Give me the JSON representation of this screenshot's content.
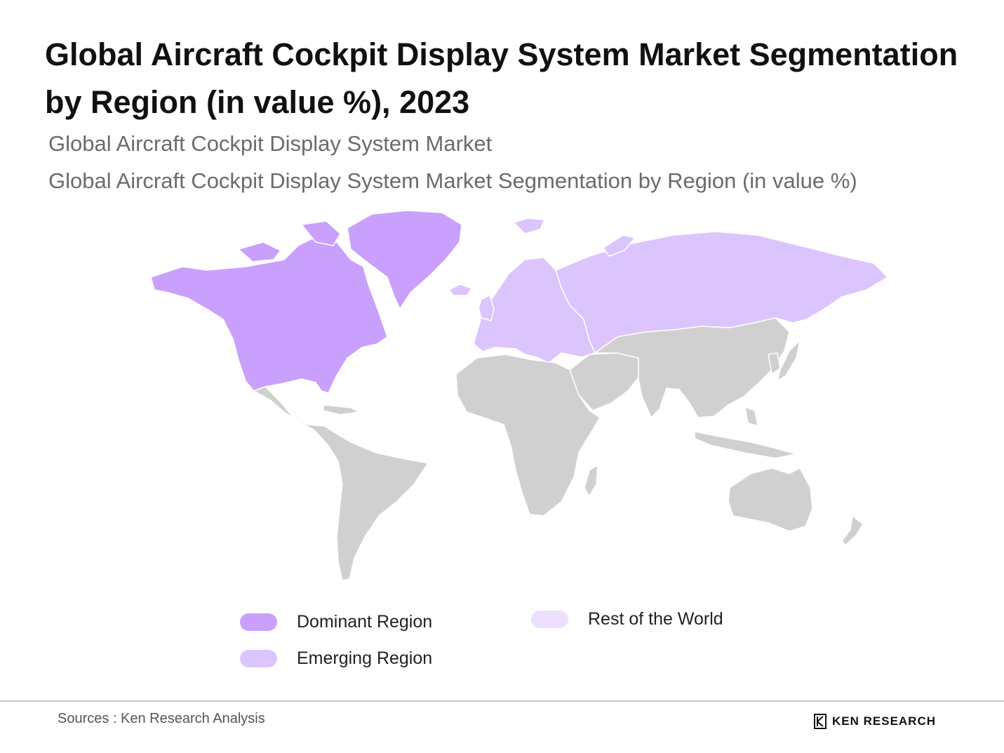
{
  "title": "Global Aircraft Cockpit Display System Market Segmentation by Region (in value %), 2023",
  "subtitle_1": "Global Aircraft Cockpit Display System Market",
  "subtitle_2": "Global Aircraft Cockpit Display System Market Segmentation by Region (in value %)",
  "colors": {
    "dominant": "#c9a0fc",
    "emerging": "#dcc5fd",
    "rest_of_world_legend": "#ece0fe",
    "base_land": "#d0d0d0",
    "border": "#ffffff"
  },
  "map": {
    "regions": [
      {
        "name": "North America",
        "category": "dominant"
      },
      {
        "name": "Greenland",
        "category": "dominant"
      },
      {
        "name": "Europe",
        "category": "emerging"
      },
      {
        "name": "Russia",
        "category": "emerging"
      },
      {
        "name": "Latin America",
        "category": "base"
      },
      {
        "name": "Africa",
        "category": "base"
      },
      {
        "name": "Middle East",
        "category": "base"
      },
      {
        "name": "Asia",
        "category": "base"
      },
      {
        "name": "Oceania",
        "category": "base"
      }
    ]
  },
  "legend": [
    {
      "label": "Dominant Region",
      "color": "#c9a0fc"
    },
    {
      "label": "Emerging Region",
      "color": "#dcc5fd"
    },
    {
      "label": "Rest of the World",
      "color": "#ece0fe"
    }
  ],
  "footer": {
    "source": "Sources : Ken Research Analysis",
    "brand": "KEN RESEARCH"
  }
}
